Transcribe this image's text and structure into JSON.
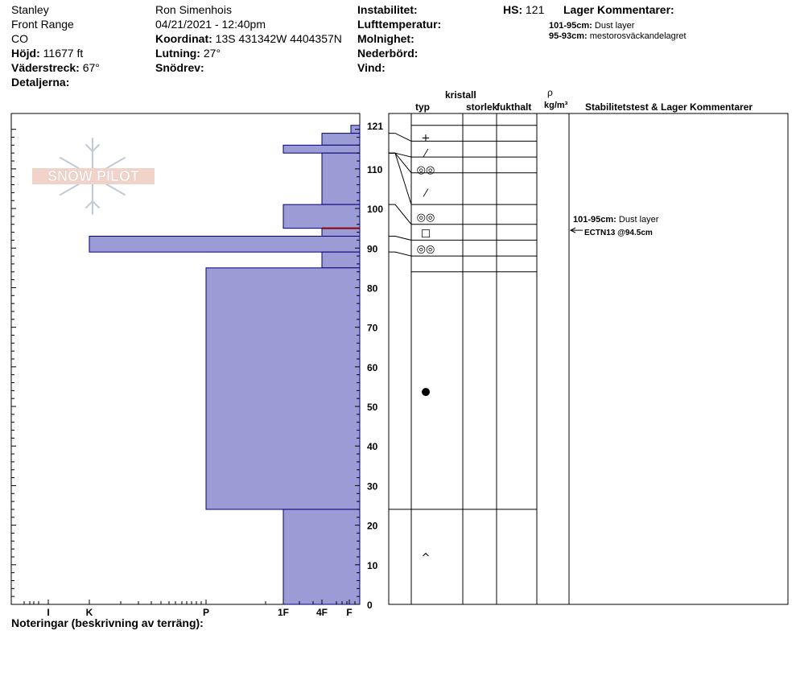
{
  "header": {
    "col1": [
      "Stanley",
      "Front Range",
      "CO"
    ],
    "elevation_label": "Höjd:",
    "elevation_value": "11677 ft",
    "aspect_label": "Väderstreck:",
    "aspect_value": "67°",
    "details_label": "Detaljerna:",
    "observer": "Ron Simenhois",
    "datetime": "04/21/2021 - 12:40pm",
    "coord_label": "Koordinat:",
    "coord_value": "13S 431342W 4404357N",
    "slope_label": "Lutning:",
    "slope_value": "27°",
    "drift_label": "Snödrev:",
    "instability_label": "Instabilitet:",
    "airtemp_label": "Lufttemperatur:",
    "clouds_label": "Molnighet:",
    "precip_label": "Nederbörd:",
    "wind_label": "Vind:",
    "hs_label": "HS:",
    "hs_value": "121",
    "layer_comments_title": "Lager Kommentarer:",
    "layer_comments": [
      {
        "range": "101-95cm:",
        "text": "Dust layer"
      },
      {
        "range": "95-93cm:",
        "text": "mestorosväckandelagret"
      }
    ]
  },
  "logo": {
    "text": "SNOW PILOT"
  },
  "table_headers": {
    "crystal": "kristall",
    "type": "typ",
    "size": "storlek",
    "moisture": "fukthalt",
    "density_symbol": "ρ",
    "density_unit": "kg/m³",
    "stability": "Stabilitetstest & Lager Kommentarer"
  },
  "stability_comment": {
    "range": "101-95cm:",
    "text": "Dust layer"
  },
  "stability_test": "ECTN13 @94.5cm",
  "footer": {
    "notes_label": "Noteringar (beskrivning av terräng):"
  },
  "chart_data": {
    "type": "bar",
    "orientation": "horizontal",
    "y_axis": {
      "label": "",
      "range": [
        0,
        121
      ],
      "ticks": [
        0,
        10,
        20,
        30,
        40,
        50,
        60,
        70,
        80,
        90,
        100,
        110,
        121
      ]
    },
    "x_axis": {
      "label": "",
      "ticks": [
        "I",
        "K",
        "P",
        "1F",
        "4F",
        "F"
      ]
    },
    "hardness_layers": [
      {
        "top": 121,
        "bottom": 119,
        "hardness": "F+"
      },
      {
        "top": 119,
        "bottom": 116,
        "hardness": "4F"
      },
      {
        "top": 116,
        "bottom": 114,
        "hardness": "1F"
      },
      {
        "top": 114,
        "bottom": 101,
        "hardness": "4F"
      },
      {
        "top": 101,
        "bottom": 95,
        "hardness": "1F"
      },
      {
        "top": 95,
        "bottom": 93,
        "hardness": "4F"
      },
      {
        "top": 93,
        "bottom": 89,
        "hardness": "K"
      },
      {
        "top": 89,
        "bottom": 85,
        "hardness": "4F"
      },
      {
        "top": 85,
        "bottom": 24,
        "hardness": "P"
      },
      {
        "top": 24,
        "bottom": 0,
        "hardness": "1F"
      }
    ],
    "strat_boundaries": [
      121,
      117,
      113,
      109,
      101,
      96,
      92,
      88,
      84,
      24,
      0
    ],
    "grain_symbols": [
      {
        "depth": 118,
        "glyph": "+"
      },
      {
        "depth": 114,
        "glyph": "⁄"
      },
      {
        "depth": 110,
        "glyph": "◎◎"
      },
      {
        "depth": 104,
        "glyph": "⁄"
      },
      {
        "depth": 98,
        "glyph": "◎◎"
      },
      {
        "depth": 94,
        "glyph": "□"
      },
      {
        "depth": 90,
        "glyph": "◎◎"
      },
      {
        "depth": 54,
        "glyph": "●"
      },
      {
        "depth": 12,
        "glyph": "^"
      }
    ],
    "stability_test_depth": 94.5,
    "colors": {
      "bar_fill": "#9b9bd6",
      "bar_stroke": "#00007a",
      "marker": "#8b0000"
    }
  }
}
